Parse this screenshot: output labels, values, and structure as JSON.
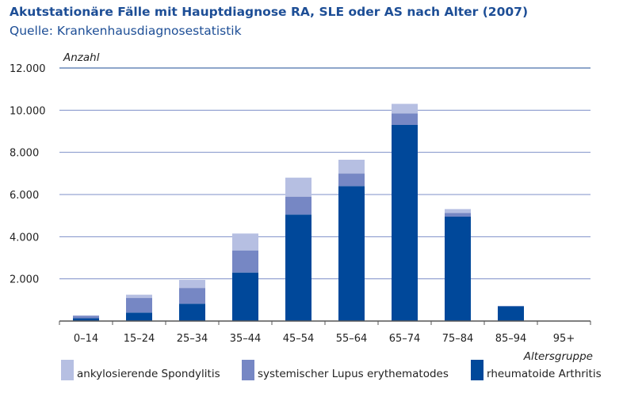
{
  "title": "Akutstationäre Fälle mit Hauptdiagnose RA, SLE oder AS nach Alter (2007)",
  "subtitle": "Quelle: Krankenhausdiagnosestatistik",
  "chart_data": {
    "type": "bar",
    "stacked": true,
    "ylabel": "Anzahl",
    "xlabel": "Altersgruppe",
    "ylim": [
      0,
      12000
    ],
    "yticks": [
      2000,
      4000,
      6000,
      8000,
      10000,
      12000
    ],
    "ytick_labels": [
      "2.000",
      "4.000",
      "6.000",
      "8.000",
      "10.000",
      "12.000"
    ],
    "categories": [
      "0–14",
      "15–24",
      "25–34",
      "35–44",
      "45–54",
      "55–64",
      "65–74",
      "75–84",
      "85–94",
      "95+"
    ],
    "series": [
      {
        "name": "rheumatoide Arthritis",
        "color": "#00489a",
        "values": [
          130,
          400,
          820,
          2300,
          5050,
          6400,
          9300,
          4950,
          700,
          10
        ]
      },
      {
        "name": "systemischer Lupus erythematodes",
        "color": "#7687c4",
        "values": [
          120,
          700,
          750,
          1050,
          850,
          600,
          550,
          180,
          15,
          0
        ]
      },
      {
        "name": "ankylosierende Spondylitis",
        "color": "#b6bfe2",
        "values": [
          20,
          150,
          380,
          800,
          900,
          650,
          450,
          180,
          5,
          0
        ]
      }
    ],
    "legend_order": [
      "ankylosierende Spondylitis",
      "systemischer Lupus erythematodes",
      "rheumatoide Arthritis"
    ],
    "grid": true,
    "legend_position": "bottom"
  }
}
